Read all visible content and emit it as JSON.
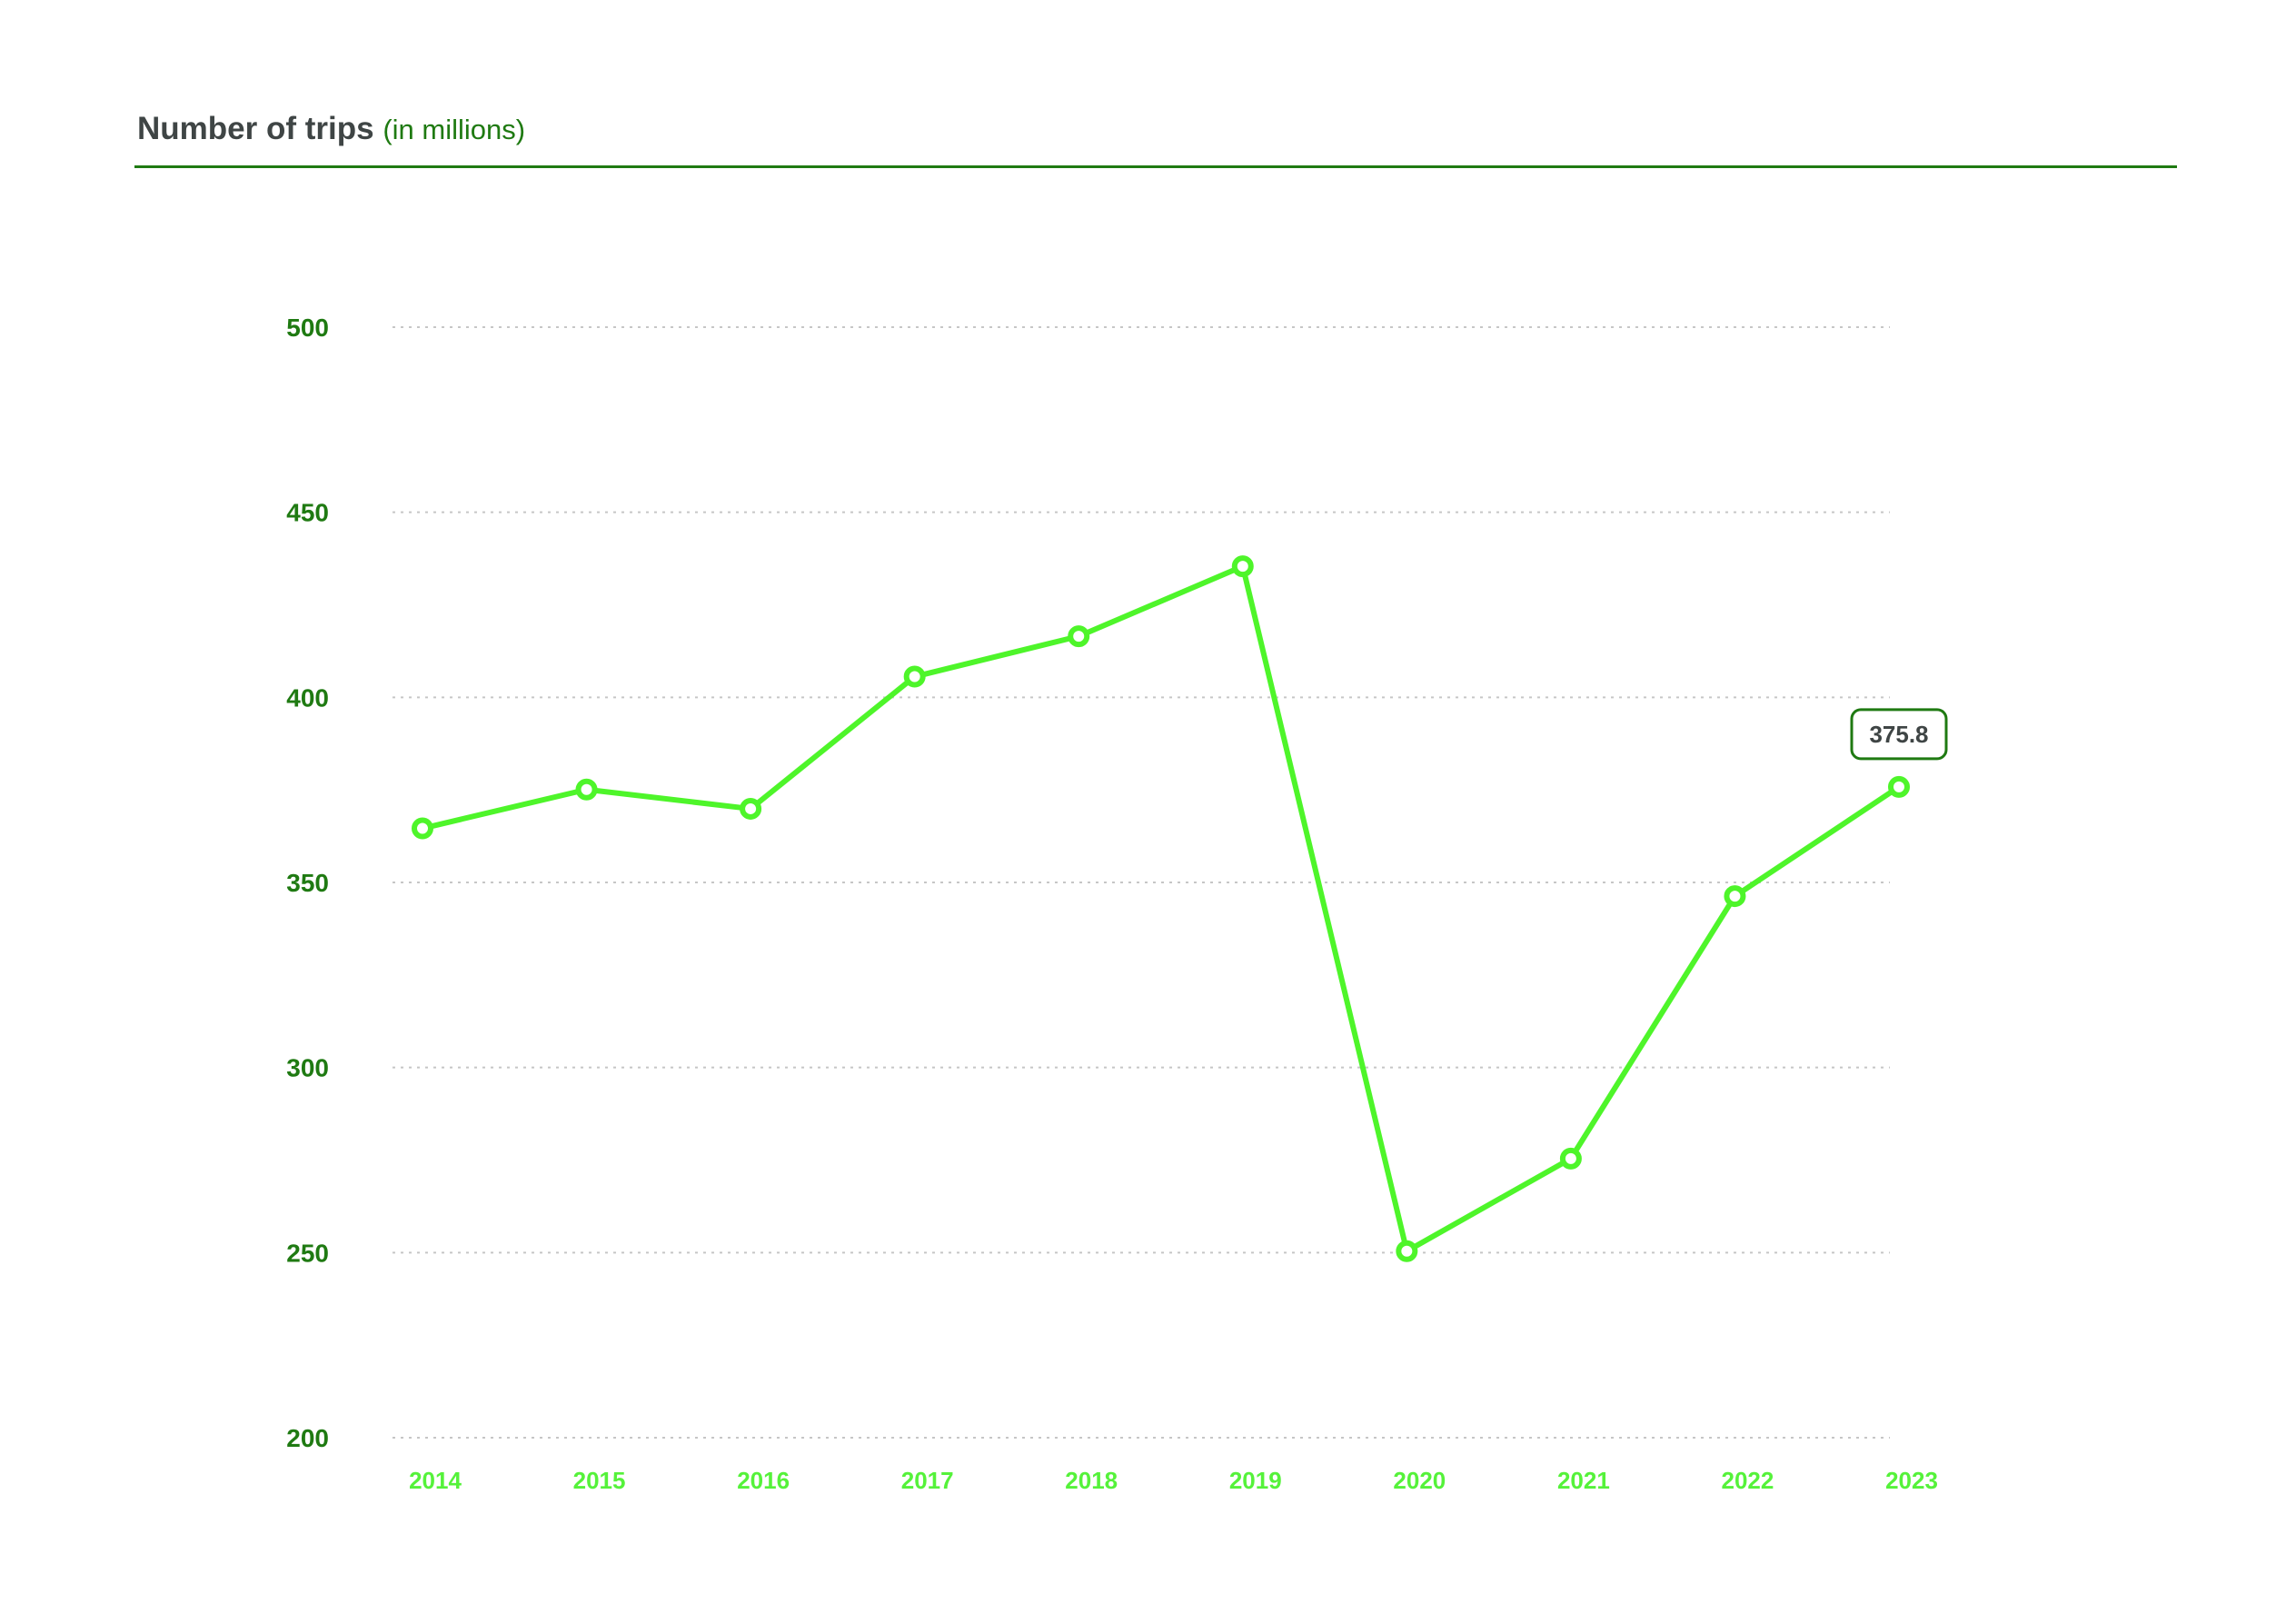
{
  "header": {
    "title": "Number of trips",
    "unit": "(in millions)"
  },
  "colors": {
    "line": "#4ef52a",
    "y_tick_text": "#1f7a12",
    "x_tick_text": "#55f23a",
    "title_text": "#3f4545",
    "rule": "#1f7a12",
    "grid": "#c6c6c6"
  },
  "chart_data": {
    "type": "line",
    "title": "Number of trips (in millions)",
    "xlabel": "",
    "ylabel": "",
    "categories": [
      "2014",
      "2015",
      "2016",
      "2017",
      "2018",
      "2019",
      "2020",
      "2021",
      "2022",
      "2023"
    ],
    "series": [
      {
        "values": [
          364.6,
          375.1,
          369.9,
          405.6,
          416.5,
          435.4,
          250.4,
          275.4,
          346.3,
          375.8
        ],
        "markers": "open-circle"
      }
    ],
    "ylim": [
      200,
      500
    ],
    "yticks": [
      500,
      450,
      400,
      350,
      300,
      250,
      200
    ],
    "grid": "horizontal-dotted",
    "legend": "none",
    "annotations": [
      {
        "category": "2023",
        "text": "375.8"
      }
    ]
  }
}
